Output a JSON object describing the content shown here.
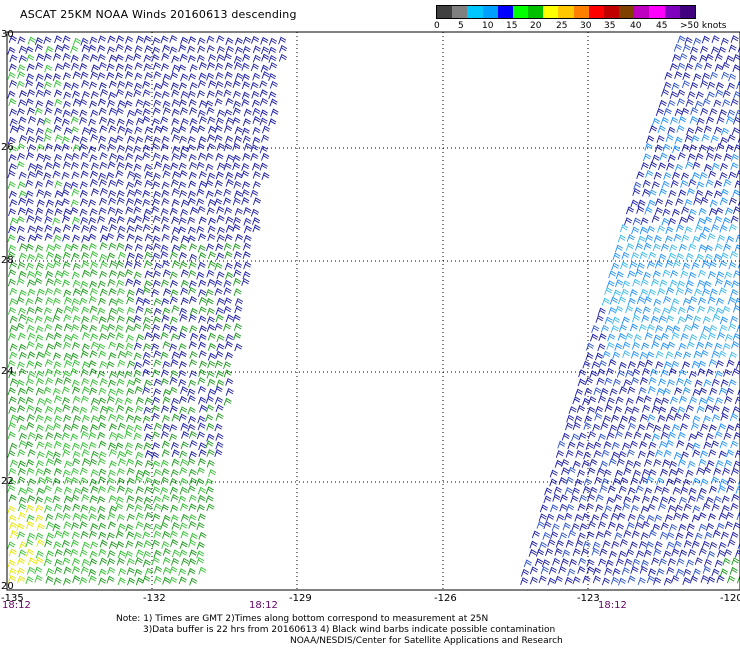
{
  "title": "ASCAT 25KM NOAA Winds 20160613 descending",
  "colorbar": {
    "colors": [
      "#404040",
      "#808080",
      "#00c8ff",
      "#00a0ff",
      "#0000ff",
      "#00ff00",
      "#00c000",
      "#ffff00",
      "#ffc800",
      "#ff8000",
      "#ff0000",
      "#c00000",
      "#804000",
      "#c000c0",
      "#ff00ff",
      "#8000c0",
      "#400080"
    ],
    "labels": [
      "0",
      "5",
      "10",
      "15",
      "20",
      "25",
      "30",
      "35",
      "40",
      "45",
      ">50 knots"
    ]
  },
  "map": {
    "lon_ticks": [
      "-135",
      "-132",
      "-129",
      "-126",
      "-123",
      "-120"
    ],
    "lat_ticks": [
      "30",
      "26",
      "28",
      "24",
      "22",
      "20"
    ],
    "time_labels": [
      "18:12",
      "18:12",
      "18:12"
    ]
  },
  "notes": {
    "line1": "Note: 1) Times are GMT 2)Times along bottom correspond to measurement at 25N",
    "line2": "3)Data buffer is 22 hrs from 20160613 4) Black wind barbs indicate possible contamination",
    "line3": "NOAA/NESDIS/Center for Satellite Applications and Research"
  }
}
